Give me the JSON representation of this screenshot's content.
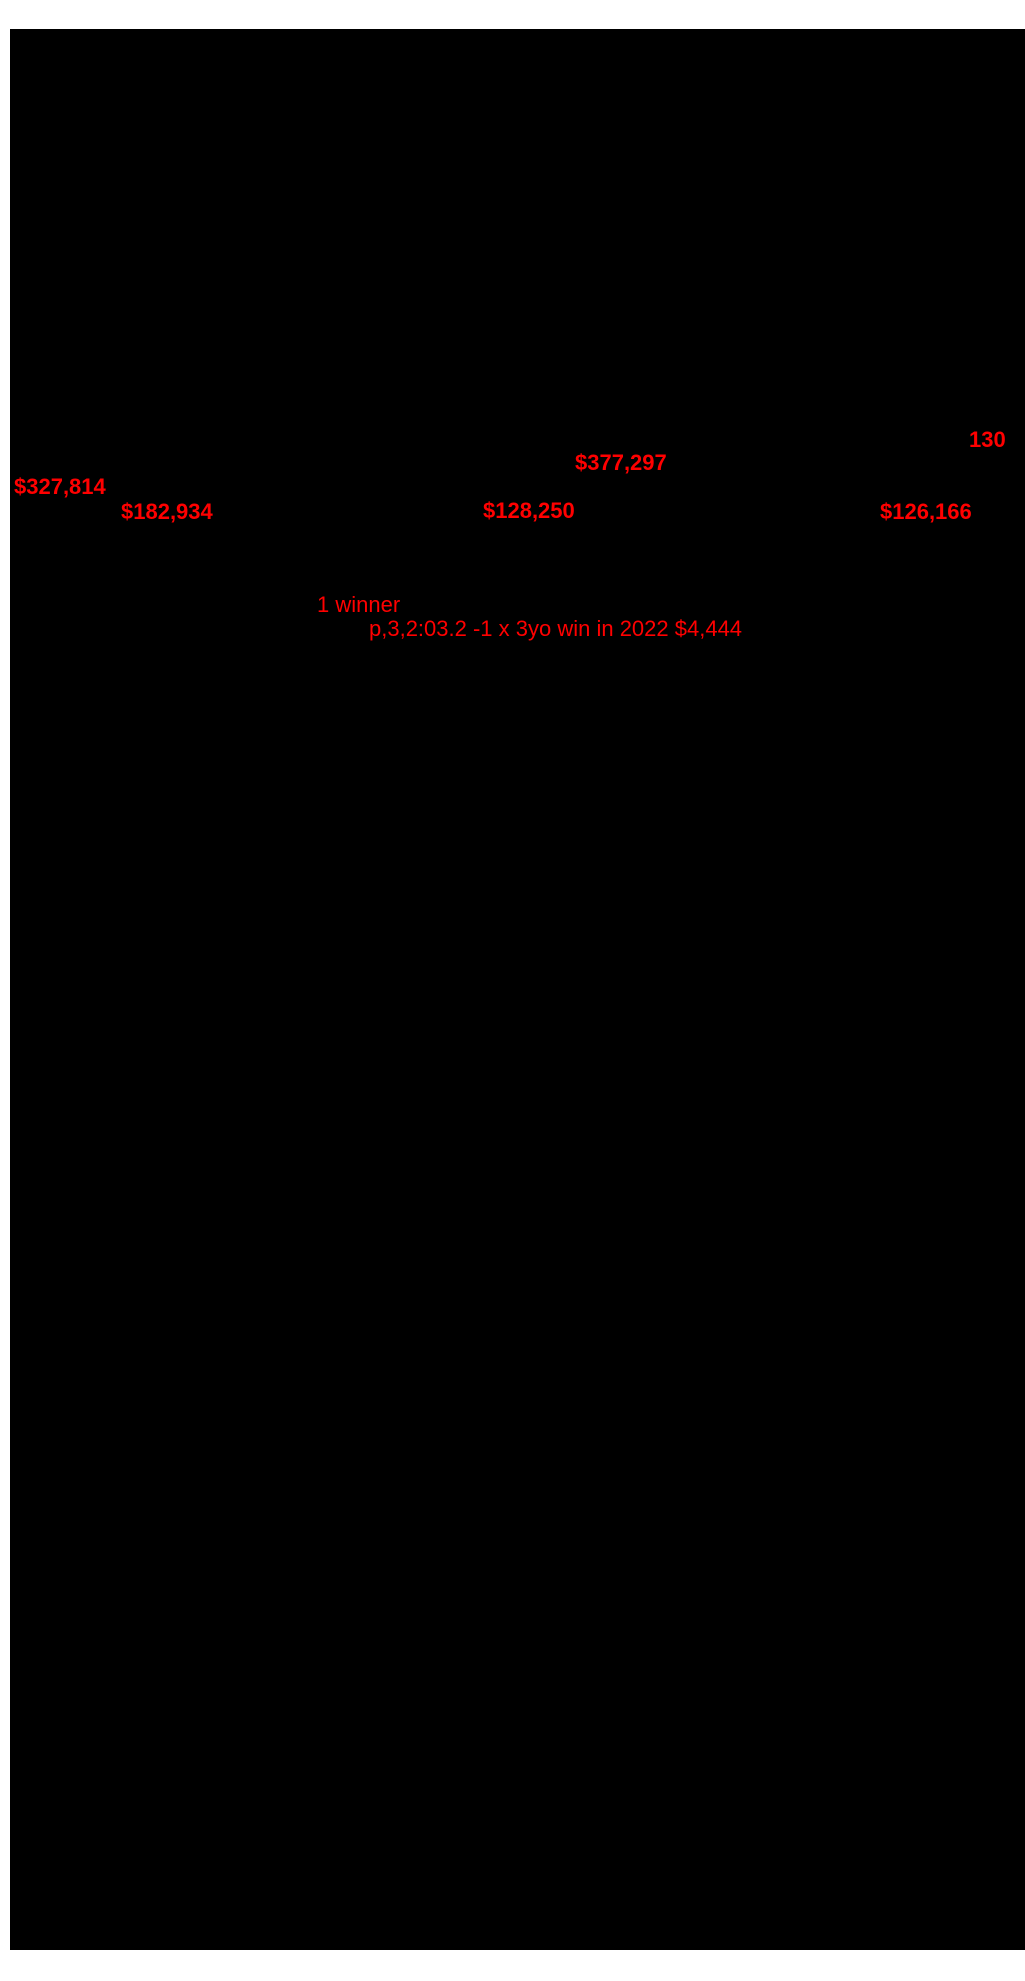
{
  "page": {
    "background_color": "#ffffff",
    "scan_panel_color": "#000000",
    "annotation_color": "#ff0000"
  },
  "annotations": {
    "hip_number": "130",
    "earnings_center_top": "$377,297",
    "earnings_far_left": "$327,814",
    "earnings_row": [
      "$182,934",
      "$128,250",
      "$126,166"
    ],
    "winner_count_line": "1 winner",
    "winner_record_line": "p,3,2:03.2 -1 x 3yo win in 2022 $4,444"
  }
}
